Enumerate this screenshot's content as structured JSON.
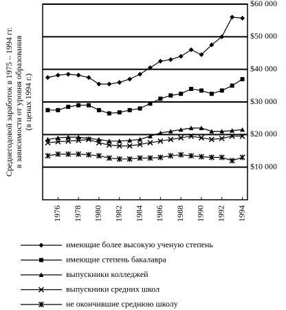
{
  "chart_data": {
    "type": "line",
    "ylabel_lines": [
      "Среднегодовой заработок в 1975 – 1994 гг.",
      "в зависимости от уровня образования",
      "(в ценах 1994 г.)"
    ],
    "x": [
      1975,
      1976,
      1977,
      1978,
      1979,
      1980,
      1981,
      1982,
      1983,
      1984,
      1985,
      1986,
      1987,
      1988,
      1989,
      1990,
      1991,
      1992,
      1993,
      1994
    ],
    "xlim": [
      1974.5,
      1994.5
    ],
    "xticks": [
      1976,
      1978,
      1980,
      1982,
      1984,
      1986,
      1988,
      1990,
      1992,
      1994
    ],
    "ylim": [
      0,
      60000
    ],
    "yticks": [
      {
        "value": 10000,
        "label": "$10 000"
      },
      {
        "value": 20000,
        "label": "$20 000"
      },
      {
        "value": 30000,
        "label": "$30 000"
      },
      {
        "value": 40000,
        "label": "$40 000"
      },
      {
        "value": 50000,
        "label": "$50 000"
      },
      {
        "value": 60000,
        "label": "$60 000"
      }
    ],
    "grid": true,
    "series": [
      {
        "name": "имеющие более высокую ученую степень",
        "color": "#000000",
        "marker": "diamond",
        "values": [
          37500,
          38200,
          38500,
          38200,
          37500,
          35500,
          35500,
          36000,
          37000,
          38500,
          40500,
          42500,
          43000,
          44000,
          46000,
          44500,
          47500,
          50000,
          56000,
          55700
        ]
      },
      {
        "name": "имеющие степень бакалавра",
        "color": "#000000",
        "marker": "square",
        "values": [
          27500,
          27500,
          28500,
          29000,
          29000,
          27500,
          26500,
          26800,
          27500,
          28000,
          29500,
          31000,
          32000,
          32500,
          34000,
          33500,
          32500,
          33500,
          35000,
          37000
        ]
      },
      {
        "name": "выпускники колледжей",
        "color": "#000000",
        "marker": "triangle",
        "values": [
          18500,
          19000,
          19200,
          19200,
          18800,
          18500,
          18000,
          18000,
          18200,
          18500,
          19500,
          20500,
          21000,
          21500,
          22000,
          22000,
          21000,
          21000,
          21200,
          21500
        ]
      },
      {
        "name": "выпускники средних школ",
        "color": "#000000",
        "marker": "x",
        "values": [
          17500,
          17800,
          18000,
          18200,
          18500,
          17500,
          16800,
          16500,
          16500,
          17000,
          17500,
          18000,
          18500,
          19000,
          19500,
          19000,
          18500,
          18800,
          19500,
          19500
        ]
      },
      {
        "name": "не окончившие среднюю школу",
        "color": "#000000",
        "marker": "asterisk",
        "values": [
          13500,
          14000,
          14000,
          14000,
          13800,
          13500,
          12800,
          12500,
          12500,
          12800,
          12800,
          13000,
          13500,
          13800,
          13500,
          13200,
          13000,
          13000,
          12000,
          13000
        ]
      }
    ]
  }
}
